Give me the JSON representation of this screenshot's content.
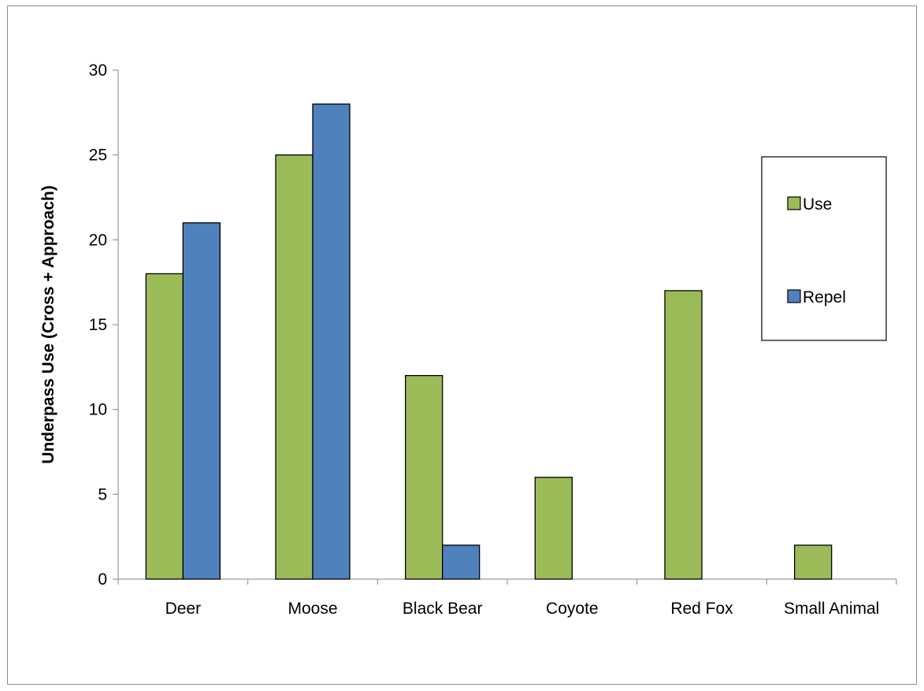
{
  "chart_data": {
    "type": "bar",
    "categories": [
      "Deer",
      "Moose",
      "Black Bear",
      "Coyote",
      "Red Fox",
      "Small Animal"
    ],
    "series": [
      {
        "name": "Use",
        "color": "#9bbb59",
        "values": [
          18,
          25,
          12,
          6,
          17,
          2
        ]
      },
      {
        "name": "Repel",
        "color": "#4f81bd",
        "values": [
          21,
          28,
          2,
          0,
          0,
          0
        ]
      }
    ],
    "title": "",
    "xlabel": "",
    "ylabel": "Underpass Use (Cross + Approach)",
    "ylim": [
      0,
      30
    ],
    "yticks": [
      0,
      5,
      10,
      15,
      20,
      25,
      30
    ],
    "grid": false,
    "legend_position": "right"
  }
}
